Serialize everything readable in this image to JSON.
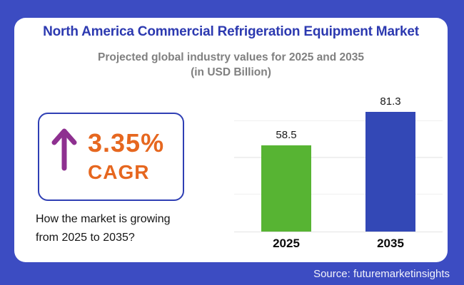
{
  "header": {
    "title": "North America Commercial Refrigeration Equipment Market",
    "subtitle": "Projected global industry values for 2025 and 2035\n(in USD Billion)"
  },
  "cagr": {
    "value": "3.35%",
    "label": "CAGR",
    "arrow_icon": "up-arrow-icon",
    "arrow_color": "#8E3090",
    "question": "How the market is growing\nfrom 2025 to 2035?"
  },
  "chart_data": {
    "type": "bar",
    "categories": [
      "2025",
      "2035"
    ],
    "values": [
      58.5,
      81.3
    ],
    "value_labels": [
      "58.5",
      "81.3"
    ],
    "bar_colors": [
      "#57B433",
      "#3348B6"
    ],
    "title": "North America Commercial Refrigeration Equipment Market",
    "xlabel": "",
    "ylabel": "",
    "unit": "USD Billion",
    "ylim": [
      0,
      90
    ],
    "gridlines": [
      25,
      50,
      75
    ],
    "grid": true,
    "legend": "none"
  },
  "footer": {
    "source": "Source: futuremarketinsights"
  },
  "colors": {
    "background": "#3C4CC2",
    "card": "#FFFFFF",
    "title_text": "#2C39B0",
    "subtitle_text": "#808080",
    "accent_orange": "#E6671F",
    "accent_purple": "#8E3090",
    "box_border": "#2F3FB4",
    "bar_green": "#57B433",
    "bar_blue": "#3348B6"
  }
}
